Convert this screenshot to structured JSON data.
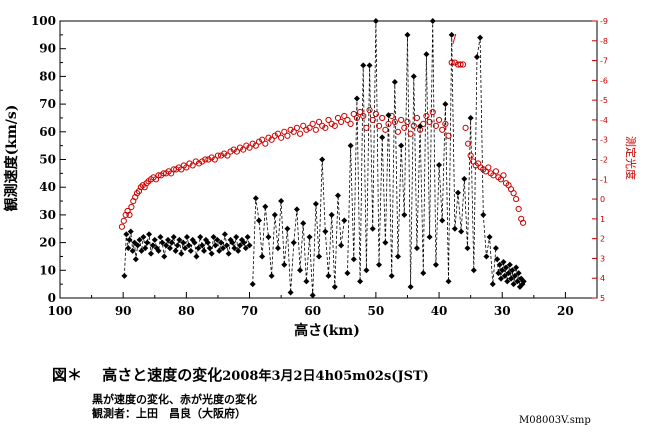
{
  "chart_data": {
    "type": "scatter",
    "title": "図＊　高さと速度の変化",
    "title_date": "2008年3月2日4h05m02s(JST)",
    "xlabel": "高さ(km)",
    "ylabel": "観測速度(km/s)",
    "y2label": "測定光度",
    "xlim": [
      100,
      15
    ],
    "ylim": [
      0,
      100
    ],
    "y2lim": [
      5,
      -9
    ],
    "x_ticks": [
      "100",
      "90",
      "80",
      "70",
      "60",
      "50",
      "40",
      "30",
      "20"
    ],
    "y_ticks": [
      "0",
      "10",
      "20",
      "30",
      "40",
      "50",
      "60",
      "70",
      "80",
      "90",
      "100"
    ],
    "y2_ticks": [
      "-9",
      "-8",
      "-7",
      "-6",
      "-5",
      "-4",
      "-3",
      "-2",
      "-1",
      "0",
      "1",
      "2",
      "3",
      "4",
      "5"
    ],
    "colors": {
      "speed": "#000000",
      "brightness": "#cc0000",
      "axis": "#000000"
    },
    "series": [
      {
        "name": "観測速度",
        "axis": "left",
        "color": "#000000",
        "marker": "diamond-filled",
        "line": "dashed",
        "segments": [
          {
            "x": [
              89.8,
              89.5,
              89.2,
              89.0,
              88.8,
              88.5,
              88.2,
              88.0,
              87.7,
              87.4,
              87.1,
              86.8,
              86.5,
              86.2,
              85.9,
              85.6,
              85.3,
              85.0,
              84.7,
              84.4,
              84.1,
              83.8,
              83.5,
              83.2,
              82.9,
              82.6,
              82.3,
              82.0,
              81.7,
              81.4,
              81.1,
              80.8,
              80.5,
              80.2,
              79.9,
              79.6,
              79.3,
              79.0,
              78.7,
              78.4,
              78.1,
              77.8,
              77.5,
              77.2,
              76.9,
              76.6,
              76.3,
              76.0,
              75.7,
              75.4,
              75.1,
              74.8,
              74.5,
              74.2,
              73.9,
              73.6,
              73.3,
              73.0,
              72.7,
              72.4,
              72.1,
              71.8,
              71.5,
              71.2,
              70.9,
              70.6,
              70.3,
              70.0
            ],
            "y": [
              8,
              23,
              18,
              21,
              24,
              17,
              20,
              14,
              19,
              21,
              17,
              22,
              18,
              20,
              23,
              16,
              19,
              21,
              18,
              17,
              22,
              20,
              15,
              19,
              21,
              18,
              20,
              22,
              17,
              19,
              21,
              16,
              20,
              18,
              22,
              19,
              17,
              21,
              20,
              15,
              18,
              22,
              19,
              17,
              21,
              20,
              18,
              16,
              22,
              19,
              21,
              17,
              20,
              18,
              23,
              19,
              16,
              21,
              20,
              18,
              22,
              17,
              19,
              21,
              20,
              18,
              22,
              19
            ]
          },
          {
            "x": [
              69.5,
              69.0,
              68.5,
              68.0,
              67.5,
              67.0,
              66.5,
              66.0,
              65.5,
              65.0,
              64.5,
              64.0,
              63.5,
              63.0,
              62.5,
              62.0,
              61.5,
              61.0,
              60.5,
              60.0,
              59.5,
              59.0,
              58.5,
              58.0,
              57.5,
              57.0,
              56.5,
              56.0,
              55.5,
              55.0
            ],
            "y": [
              5,
              36,
              28,
              15,
              33,
              22,
              8,
              30,
              18,
              35,
              12,
              25,
              2,
              20,
              32,
              10,
              27,
              6,
              22,
              1,
              34,
              15,
              50,
              24,
              8,
              30,
              4,
              37,
              19,
              28
            ]
          },
          {
            "x": [
              54.5,
              54.0,
              53.5,
              53.0,
              52.5,
              52.0,
              51.5,
              51.0,
              50.5,
              50.0,
              49.5,
              49.0,
              48.5,
              48.0,
              47.5,
              47.0,
              46.5,
              46.0,
              45.5,
              45.0,
              44.5,
              44.0,
              43.5,
              43.0,
              42.5,
              42.0,
              41.5,
              41.0,
              40.5,
              40.0,
              39.5,
              39.0,
              38.5,
              38.0,
              37.5,
              37.0,
              36.5,
              36.0,
              35.5,
              35.0,
              34.5,
              34.0,
              33.5,
              33.0,
              32.5,
              32.0,
              31.5,
              31.0
            ],
            "y": [
              9,
              55,
              14,
              72,
              6,
              84,
              10,
              84,
              25,
              100,
              12,
              58,
              20,
              66,
              8,
              78,
              15,
              55,
              30,
              95,
              4,
              80,
              18,
              62,
              9,
              88,
              22,
              100,
              12,
              48,
              28,
              70,
              6,
              95,
              25,
              38,
              24,
              43,
              18,
              65,
              10,
              87,
              94,
              30,
              15,
              22,
              5,
              18
            ]
          },
          {
            "x": [
              30.8,
              30.6,
              30.4,
              30.2,
              30.0,
              29.8,
              29.6,
              29.4,
              29.2,
              29.0,
              28.8,
              28.6,
              28.4,
              28.2,
              28.0,
              27.8,
              27.6,
              27.4,
              27.2,
              27.0,
              26.8,
              26.6
            ],
            "y": [
              14,
              9,
              12,
              7,
              10,
              13,
              8,
              11,
              6,
              9,
              12,
              7,
              10,
              5,
              8,
              11,
              6,
              9,
              4,
              7,
              5,
              6
            ]
          }
        ]
      },
      {
        "name": "測定光度",
        "axis": "right",
        "color": "#cc0000",
        "marker": "circle-open",
        "line": "none",
        "x": [
          90.2,
          89.9,
          89.6,
          89.3,
          89.0,
          88.7,
          88.4,
          88.1,
          87.8,
          87.5,
          87.2,
          86.9,
          86.6,
          86.3,
          86.0,
          85.6,
          85.2,
          84.8,
          84.4,
          84.0,
          83.6,
          83.2,
          82.8,
          82.4,
          82.0,
          81.6,
          81.2,
          80.8,
          80.4,
          80.0,
          79.5,
          79.0,
          78.5,
          78.0,
          77.5,
          77.0,
          76.5,
          76.0,
          75.5,
          75.0,
          74.5,
          74.0,
          73.5,
          73.0,
          72.5,
          72.0,
          71.5,
          71.0,
          70.5,
          70.0,
          69.5,
          69.0,
          68.5,
          68.0,
          67.5,
          67.0,
          66.5,
          66.0,
          65.5,
          65.0,
          64.5,
          64.0,
          63.5,
          63.0,
          62.5,
          62.0,
          61.5,
          61.0,
          60.5,
          60.0,
          59.5,
          59.0,
          58.5,
          58.0,
          57.5,
          57.0,
          56.5,
          56.0,
          55.5,
          55.0,
          54.5,
          54.0,
          53.5,
          53.0,
          52.5,
          52.0,
          51.5,
          51.0,
          50.5,
          50.0,
          49.5,
          49.0,
          48.5,
          48.0,
          47.5,
          47.0,
          46.5,
          46.0,
          45.5,
          45.0,
          44.5,
          44.0,
          43.5,
          43.0,
          42.5,
          42.0,
          41.5,
          41.0,
          40.5,
          40.0,
          39.5,
          39.0,
          38.5,
          38.0,
          37.5,
          37.0,
          36.6,
          36.2,
          35.8,
          35.4,
          35.0,
          34.6,
          34.2,
          33.8,
          33.4,
          33.0,
          32.6,
          32.2,
          31.8,
          31.4,
          31.0,
          30.6,
          30.2,
          29.8,
          29.4,
          29.0,
          28.6,
          28.2,
          27.8,
          27.4,
          27.0,
          26.7
        ],
        "y": [
          1.4,
          1.1,
          0.8,
          0.6,
          0.8,
          0.4,
          0.1,
          -0.1,
          -0.3,
          -0.4,
          -0.6,
          -0.7,
          -0.6,
          -0.8,
          -0.9,
          -1.0,
          -1.1,
          -1.0,
          -1.2,
          -1.2,
          -1.3,
          -1.3,
          -1.4,
          -1.3,
          -1.5,
          -1.5,
          -1.6,
          -1.5,
          -1.7,
          -1.6,
          -1.8,
          -1.7,
          -1.9,
          -1.8,
          -1.9,
          -2.0,
          -2.0,
          -2.1,
          -2.0,
          -2.2,
          -2.2,
          -2.3,
          -2.2,
          -2.4,
          -2.5,
          -2.4,
          -2.6,
          -2.5,
          -2.7,
          -2.6,
          -2.8,
          -2.7,
          -2.9,
          -3.0,
          -2.8,
          -3.1,
          -3.0,
          -3.2,
          -3.3,
          -3.1,
          -3.4,
          -3.2,
          -3.5,
          -3.4,
          -3.6,
          -3.3,
          -3.7,
          -3.5,
          -3.6,
          -3.8,
          -3.5,
          -3.9,
          -3.7,
          -3.6,
          -4.0,
          -3.8,
          -3.7,
          -4.1,
          -3.9,
          -4.2,
          -4.0,
          -3.8,
          -4.3,
          -4.1,
          -4.4,
          -4.2,
          -3.6,
          -4.5,
          -4.0,
          -4.3,
          -3.7,
          -4.1,
          -3.5,
          -3.8,
          -4.2,
          -3.9,
          -3.4,
          -4.0,
          -3.6,
          -3.9,
          -3.3,
          -3.7,
          -4.1,
          -3.5,
          -3.8,
          -4.2,
          -3.9,
          -4.4,
          -3.7,
          -4.0,
          -3.5,
          -3.8,
          -3.2,
          -6.9,
          -6.9,
          -6.8,
          -6.8,
          -6.8,
          -3.6,
          -2.8,
          -2.2,
          -1.9,
          -1.7,
          -1.8,
          -1.6,
          -1.5,
          -1.4,
          -1.6,
          -1.3,
          -1.2,
          -1.4,
          -1.1,
          -1.0,
          -1.2,
          -0.8,
          -0.7,
          -0.5,
          -0.3,
          0.0,
          0.5,
          1.0,
          1.2
        ]
      }
    ],
    "annotations": [
      {
        "text": "/",
        "x": 37.6,
        "y2": -7.9,
        "color": "#cc0000"
      }
    ]
  },
  "caption": {
    "figure_label": "図＊",
    "title": "高さと速度の変化",
    "date": "2008年3月2日4h05m02s(JST)",
    "line1": "黒が速度の変化、赤が光度の変化",
    "line2": "観測者：上田　昌良（大阪府）"
  },
  "file_label": "M08003V.smp"
}
